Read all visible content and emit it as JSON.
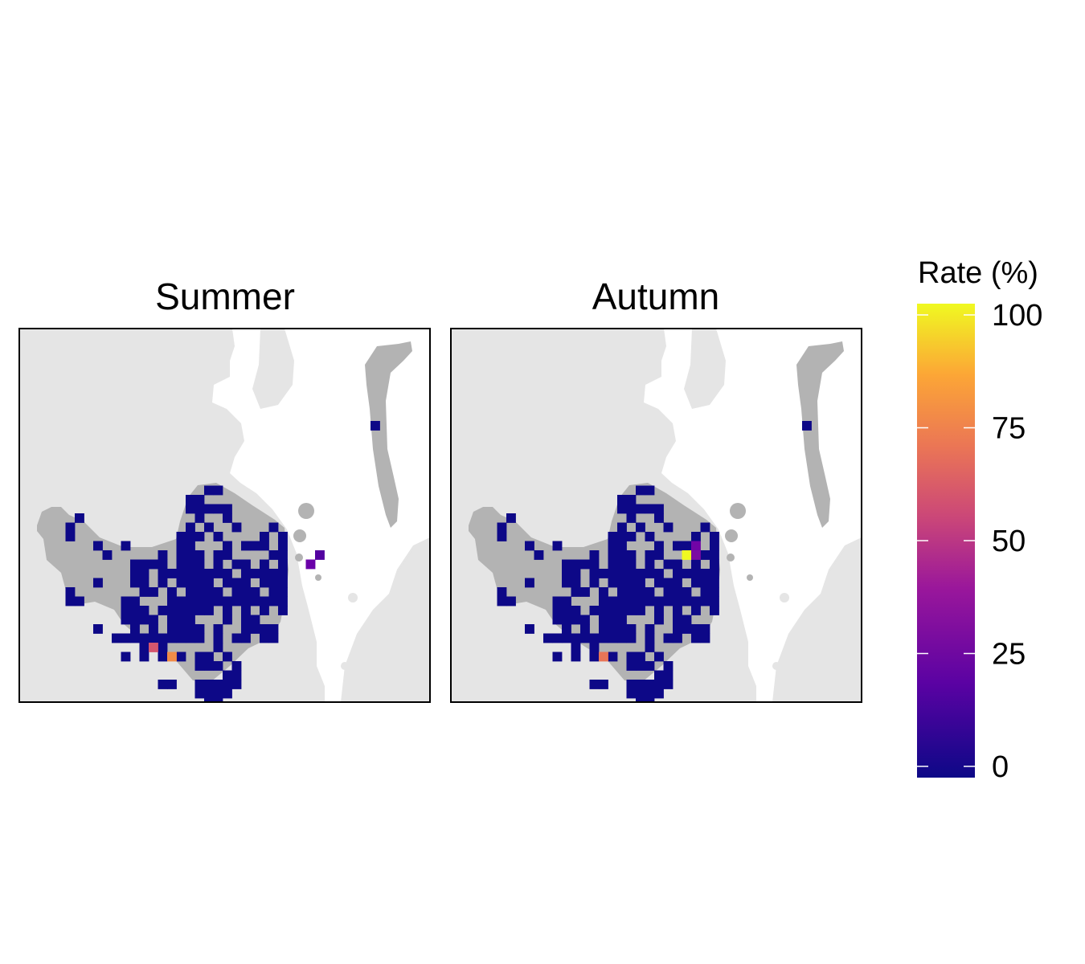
{
  "panels": [
    {
      "title": "Summer",
      "highlights": [
        {
          "col": 32,
          "row": 24,
          "rate": 15
        },
        {
          "col": 31,
          "row": 25,
          "rate": 20
        },
        {
          "col": 14,
          "row": 34,
          "rate": 55
        },
        {
          "col": 16,
          "row": 35,
          "rate": 72
        }
      ]
    },
    {
      "title": "Autumn",
      "highlights": [
        {
          "col": 26,
          "row": 23,
          "rate": 22
        },
        {
          "col": 25,
          "row": 24,
          "rate": 100
        },
        {
          "col": 26,
          "row": 24,
          "rate": 25
        },
        {
          "col": 16,
          "row": 35,
          "rate": 65
        }
      ]
    }
  ],
  "legend": {
    "title": "Rate (%)",
    "ticks": [
      "0",
      "25",
      "50",
      "75",
      "100"
    ],
    "tick_values": [
      0,
      25,
      50,
      75,
      100
    ],
    "min": 0,
    "max": 100,
    "colors": [
      "#0d0887",
      "#6a00a8",
      "#b12a90",
      "#e16462",
      "#fca636",
      "#f0f921"
    ]
  },
  "colors": {
    "background_land": "#e5e5e5",
    "water": "#ffffff",
    "study_area": "#b3b3b3",
    "zero_rate": "#0d0887"
  }
}
